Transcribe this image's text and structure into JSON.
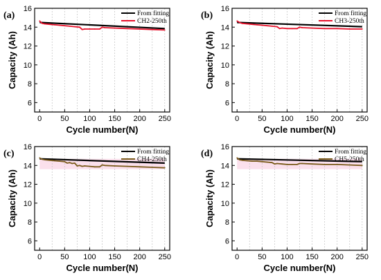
{
  "chart_data": [
    {
      "type": "line",
      "panel_label": "(a)",
      "xlabel": "Cycle number(N)",
      "ylabel": "Capacity (Ah)",
      "xlim": [
        -10,
        260
      ],
      "ylim": [
        5,
        16
      ],
      "xticks": [
        "0",
        "50",
        "100",
        "150",
        "200",
        "250"
      ],
      "yticks": [
        "6",
        "8",
        "10",
        "12",
        "14",
        "16"
      ],
      "legend_position": "top-right",
      "band": "none",
      "series": [
        {
          "name": "From fitting",
          "color": "#000000",
          "x": [
            0,
            250
          ],
          "values": [
            14.5,
            13.85
          ]
        },
        {
          "name": "CH2-250th",
          "color": "#e8102a",
          "x": [
            0,
            5,
            10,
            20,
            30,
            40,
            50,
            60,
            70,
            80,
            85,
            90,
            100,
            110,
            120,
            125,
            130,
            150,
            175,
            200,
            225,
            250
          ],
          "values": [
            14.65,
            14.4,
            14.35,
            14.3,
            14.25,
            14.2,
            14.15,
            14.1,
            14.05,
            14.0,
            13.75,
            13.8,
            13.8,
            13.8,
            13.8,
            14.0,
            13.95,
            13.9,
            13.85,
            13.8,
            13.75,
            13.7
          ]
        }
      ]
    },
    {
      "type": "line",
      "panel_label": "(b)",
      "xlabel": "Cycle number(N)",
      "ylabel": "Capacity (Ah)",
      "xlim": [
        -10,
        260
      ],
      "ylim": [
        5,
        16
      ],
      "xticks": [
        "0",
        "50",
        "100",
        "150",
        "200",
        "250"
      ],
      "yticks": [
        "6",
        "8",
        "10",
        "12",
        "14",
        "16"
      ],
      "legend_position": "top-right",
      "band": "none",
      "series": [
        {
          "name": "From fitting",
          "color": "#000000",
          "x": [
            0,
            250
          ],
          "values": [
            14.5,
            14.05
          ]
        },
        {
          "name": "CH3-250th",
          "color": "#e8102a",
          "x": [
            0,
            5,
            10,
            20,
            30,
            40,
            50,
            60,
            70,
            80,
            85,
            90,
            100,
            110,
            120,
            125,
            130,
            150,
            175,
            200,
            225,
            250
          ],
          "values": [
            14.65,
            14.5,
            14.4,
            14.35,
            14.3,
            14.25,
            14.2,
            14.15,
            14.1,
            14.05,
            13.85,
            13.9,
            13.85,
            13.85,
            13.85,
            14.0,
            13.95,
            13.9,
            13.85,
            13.85,
            13.8,
            13.8
          ]
        }
      ]
    },
    {
      "type": "line",
      "panel_label": "(c)",
      "xlabel": "Cycle number(N)",
      "ylabel": "Capacity (Ah)",
      "xlim": [
        -10,
        260
      ],
      "ylim": [
        5,
        16
      ],
      "xticks": [
        "0",
        "50",
        "100",
        "150",
        "200",
        "250"
      ],
      "yticks": [
        "6",
        "8",
        "10",
        "12",
        "14",
        "16"
      ],
      "legend_position": "top-right",
      "band": "pink",
      "series": [
        {
          "name": "From fitting",
          "color": "#000000",
          "x": [
            0,
            250
          ],
          "values": [
            14.7,
            14.25
          ]
        },
        {
          "name": "CH4-250th",
          "color": "#7a5a1a",
          "x": [
            0,
            5,
            10,
            20,
            30,
            40,
            50,
            55,
            60,
            65,
            70,
            75,
            80,
            85,
            90,
            100,
            110,
            120,
            125,
            130,
            150,
            175,
            200,
            225,
            250
          ],
          "values": [
            14.8,
            14.65,
            14.6,
            14.55,
            14.5,
            14.45,
            14.4,
            14.25,
            14.3,
            14.2,
            14.25,
            13.95,
            14.0,
            13.9,
            13.95,
            13.9,
            13.85,
            13.85,
            14.05,
            14.0,
            13.95,
            13.9,
            13.85,
            13.8,
            13.75
          ]
        }
      ]
    },
    {
      "type": "line",
      "panel_label": "(d)",
      "xlabel": "Cycle number(N)",
      "ylabel": "Capacity (Ah)",
      "xlim": [
        -10,
        260
      ],
      "ylim": [
        5,
        16
      ],
      "xticks": [
        "0",
        "50",
        "100",
        "150",
        "200",
        "250"
      ],
      "yticks": [
        "6",
        "8",
        "10",
        "12",
        "14",
        "16"
      ],
      "legend_position": "top-right",
      "band": "pink",
      "series": [
        {
          "name": "From fitting",
          "color": "#000000",
          "x": [
            0,
            250
          ],
          "values": [
            14.7,
            14.4
          ]
        },
        {
          "name": "CH5-250th",
          "color": "#7a5a1a",
          "x": [
            0,
            5,
            10,
            20,
            30,
            40,
            50,
            60,
            70,
            75,
            80,
            90,
            100,
            110,
            120,
            125,
            130,
            150,
            175,
            200,
            225,
            250
          ],
          "values": [
            14.8,
            14.6,
            14.55,
            14.5,
            14.45,
            14.45,
            14.4,
            14.35,
            14.3,
            14.15,
            14.2,
            14.15,
            14.1,
            14.1,
            14.1,
            14.2,
            14.2,
            14.15,
            14.1,
            14.1,
            14.05,
            14.0
          ]
        }
      ]
    }
  ]
}
